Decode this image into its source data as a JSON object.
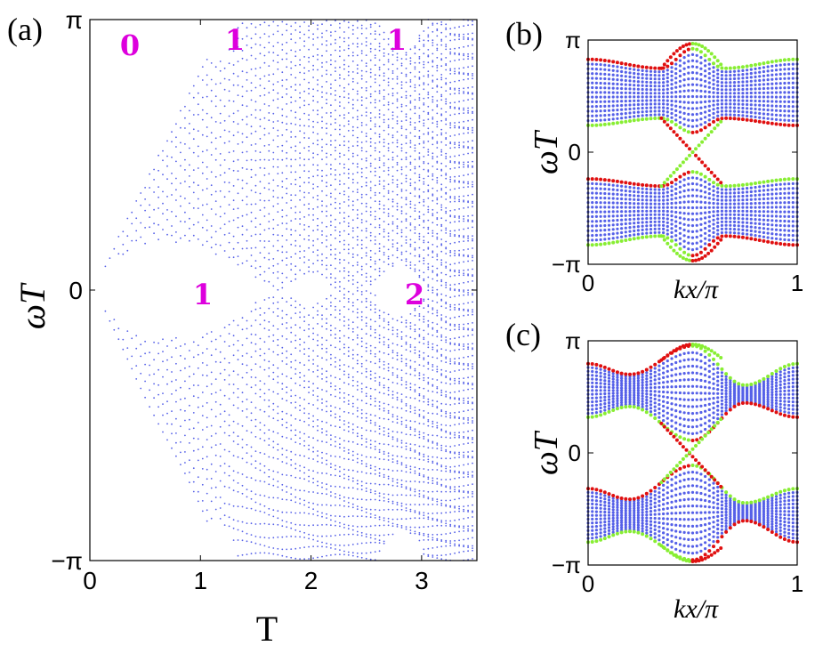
{
  "colors": {
    "bulk": "#5560e8",
    "edge_red": "#e01010",
    "edge_green": "#88ee33",
    "region_label": "#dd00dd",
    "axis": "#000000"
  },
  "panels": {
    "a": {
      "label": "(a)",
      "ylabel": "ωT",
      "xlabel": "T",
      "region_labels": [
        "0",
        "1",
        "1",
        "1",
        "2"
      ]
    },
    "b": {
      "label": "(b)",
      "ylabel": "ωT",
      "xlabel": "kx/π"
    },
    "c": {
      "label": "(c)",
      "ylabel": "ωT",
      "xlabel": "kx/π"
    }
  },
  "chart_data": [
    {
      "panel": "a",
      "type": "scatter",
      "title": "",
      "xlabel": "T",
      "ylabel": "ωT",
      "xlim": [
        0,
        3.5
      ],
      "ylim": [
        -3.1416,
        3.1416
      ],
      "xticks": [
        "0",
        "1",
        "2",
        "3"
      ],
      "xtick_values": [
        0,
        1,
        2,
        3
      ],
      "yticks": [
        "−π",
        "0",
        "π"
      ],
      "ytick_values": [
        -3.1416,
        0,
        3.1416
      ],
      "series": [
        {
          "color": "bulk",
          "points": "dense quasienergy bands spanning (-π, π) with a gap around ωT=0 opening from T=0 to about T=1.6"
        }
      ],
      "annotations": [
        {
          "text": "0",
          "x": 0.2,
          "y": 2.8
        },
        {
          "text": "1",
          "x": 1.3,
          "y": 2.9
        },
        {
          "text": "1",
          "x": 2.9,
          "y": 2.9
        },
        {
          "text": "1",
          "x": 1.05,
          "y": 0.0
        },
        {
          "text": "2",
          "x": 2.95,
          "y": 0.0
        }
      ],
      "gaps": [
        {
          "T_range": [
            0.0,
            1.65
          ],
          "center": 0,
          "half_width_max": 0.55
        },
        {
          "T_range": [
            1.75,
            2.2
          ],
          "center": 0,
          "half_width_max": 0.18
        },
        {
          "T_range": [
            2.55,
            3.05
          ],
          "center": 0,
          "half_width_max": 0.3
        },
        {
          "T_range": [
            0.95,
            1.35
          ],
          "center": 3.1416,
          "half_width_max": 0.45
        },
        {
          "T_range": [
            2.6,
            3.05
          ],
          "center": 3.1416,
          "half_width_max": 0.35
        }
      ],
      "grid": false,
      "legend": "none"
    },
    {
      "panel": "b",
      "type": "scatter",
      "title": "",
      "xlabel": "kx/π",
      "ylabel": "ωT",
      "xlim": [
        0,
        1
      ],
      "ylim": [
        -3.1416,
        3.1416
      ],
      "xticks": [
        "0",
        "1"
      ],
      "xtick_values": [
        0,
        1
      ],
      "yticks": [
        "−π",
        "0",
        "π"
      ],
      "ytick_values": [
        -3.1416,
        0,
        3.1416
      ],
      "bands": {
        "upper": {
          "top": [
            [
              0,
              2.6
            ],
            [
              0.35,
              2.35
            ],
            [
              0.5,
              2.9
            ],
            [
              0.65,
              2.35
            ],
            [
              1,
              2.6
            ]
          ],
          "bottom": [
            [
              0,
              0.75
            ],
            [
              0.35,
              0.95
            ],
            [
              0.5,
              0.55
            ],
            [
              0.65,
              0.95
            ],
            [
              1,
              0.75
            ]
          ]
        },
        "lower_mirror": true
      },
      "edge_states": [
        {
          "color": "edge_red",
          "description": "upper band top edge, left half; crosses ωT=0 downward near kx=0.5"
        },
        {
          "color": "edge_green",
          "description": "upper band bottom edge and symmetric partner crossing near kx=0.5"
        }
      ],
      "grid": false,
      "legend": "none"
    },
    {
      "panel": "c",
      "type": "scatter",
      "title": "",
      "xlabel": "kx/π",
      "ylabel": "ωT",
      "xlim": [
        0,
        1
      ],
      "ylim": [
        -3.1416,
        3.1416
      ],
      "xticks": [
        "0",
        "1"
      ],
      "xtick_values": [
        0,
        1
      ],
      "yticks": [
        "−π",
        "0",
        "π"
      ],
      "ytick_values": [
        -3.1416,
        0,
        3.1416
      ],
      "bands": {
        "upper": {
          "top": [
            [
              0,
              2.5
            ],
            [
              0.2,
              2.2
            ],
            [
              0.5,
              3.0
            ],
            [
              0.75,
              1.9
            ],
            [
              1,
              2.5
            ]
          ],
          "bottom": [
            [
              0,
              1.0
            ],
            [
              0.2,
              1.3
            ],
            [
              0.5,
              0.35
            ],
            [
              0.75,
              1.4
            ],
            [
              1,
              1.0
            ]
          ]
        },
        "lower_mirror": true
      },
      "edge_states": [
        {
          "color": "edge_red",
          "description": "edge states crossing ωT=0 and ωT=±π near kx=0.5"
        },
        {
          "color": "edge_green",
          "description": "partner edge states crossing ωT=0 and ωT=±π near kx=0.5"
        }
      ],
      "grid": false,
      "legend": "none"
    }
  ]
}
